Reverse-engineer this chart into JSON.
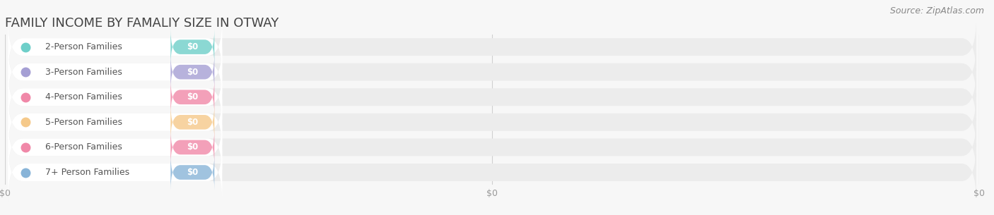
{
  "title": "Family Income by Famaliy Size in Otway",
  "source": "Source: ZipAtlas.com",
  "categories": [
    "2-Person Families",
    "3-Person Families",
    "4-Person Families",
    "5-Person Families",
    "6-Person Families",
    "7+ Person Families"
  ],
  "values": [
    0,
    0,
    0,
    0,
    0,
    0
  ],
  "bar_colors": [
    "#6ecfc9",
    "#a59fd4",
    "#f088a8",
    "#f5c98a",
    "#f088a8",
    "#88b4d8"
  ],
  "background_color": "#f7f7f7",
  "track_color": "#ececec",
  "label_bg_color": "#ffffff",
  "title_fontsize": 13,
  "label_fontsize": 9,
  "tick_fontsize": 9,
  "source_fontsize": 9,
  "bar_height": 0.7,
  "n_bars": 6,
  "xlim_max": 100,
  "xtick_positions": [
    0,
    50,
    100
  ],
  "xtick_labels": [
    "$0",
    "$0",
    "$0"
  ]
}
